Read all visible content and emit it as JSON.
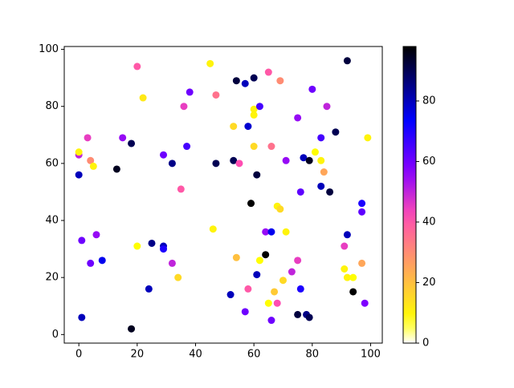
{
  "chart_data": {
    "type": "scatter",
    "colormap": "gnuplot2_r",
    "x": [
      0,
      0,
      0,
      1,
      1,
      3,
      4,
      5,
      4,
      6,
      8,
      13,
      15,
      18,
      18,
      20,
      20,
      22,
      24,
      25,
      29,
      29,
      29,
      32,
      32,
      34,
      35,
      36,
      37,
      38,
      45,
      46,
      47,
      47,
      52,
      53,
      53,
      54,
      54,
      55,
      57,
      58,
      57,
      58,
      59,
      60,
      60,
      60,
      60,
      61,
      61,
      62,
      62,
      64,
      64,
      65,
      65,
      66,
      66,
      66,
      67,
      68,
      69,
      68,
      69,
      70,
      71,
      71,
      73,
      75,
      75,
      75,
      76,
      76,
      77,
      78,
      79,
      79,
      80,
      81,
      83,
      83,
      83,
      84,
      85,
      86,
      88,
      91,
      91,
      92,
      92,
      92,
      94,
      94,
      97,
      97,
      97,
      98,
      99
    ],
    "values": [
      63,
      64,
      56,
      33,
      6,
      69,
      61,
      59,
      25,
      35,
      26,
      58,
      69,
      67,
      2,
      31,
      94,
      83,
      16,
      32,
      63,
      31,
      30,
      60,
      25,
      20,
      51,
      80,
      66,
      85,
      95,
      37,
      84,
      60,
      14,
      61,
      73,
      27,
      89,
      60,
      88,
      16,
      8,
      73,
      46,
      79,
      77,
      90,
      66,
      56,
      21,
      80,
      26,
      36,
      28,
      92,
      11,
      66,
      36,
      5,
      15,
      45,
      44,
      11,
      89,
      19,
      36,
      61,
      22,
      76,
      26,
      7,
      50,
      16,
      62,
      7,
      61,
      6,
      86,
      64,
      69,
      61,
      52,
      57,
      80,
      50,
      71,
      31,
      23,
      96,
      35,
      20,
      20,
      15,
      46,
      43,
      25,
      11,
      69
    ],
    "c": [
      50,
      10,
      80,
      60,
      80,
      45,
      30,
      10,
      60,
      55,
      75,
      95,
      55,
      90,
      95,
      8,
      40,
      12,
      80,
      85,
      60,
      80,
      70,
      85,
      50,
      15,
      40,
      45,
      65,
      60,
      10,
      10,
      35,
      90,
      80,
      90,
      15,
      20,
      92,
      42,
      80,
      40,
      60,
      78,
      98,
      10,
      10,
      90,
      15,
      92,
      80,
      65,
      8,
      55,
      98,
      40,
      8,
      35,
      75,
      60,
      18,
      10,
      15,
      42,
      30,
      15,
      10,
      55,
      50,
      55,
      45,
      92,
      62,
      70,
      80,
      85,
      95,
      90,
      60,
      8,
      65,
      10,
      80,
      25,
      50,
      92,
      90,
      45,
      10,
      92,
      80,
      10,
      8,
      98,
      70,
      62,
      25,
      58,
      10
    ],
    "xlim": [
      -5,
      104
    ],
    "ylim": [
      -3,
      101
    ],
    "xticks": [
      0,
      20,
      40,
      60,
      80,
      100
    ],
    "yticks": [
      0,
      20,
      40,
      60,
      80,
      100
    ],
    "clim": [
      0,
      98
    ],
    "cticks": [
      0,
      20,
      40,
      60,
      80
    ]
  }
}
